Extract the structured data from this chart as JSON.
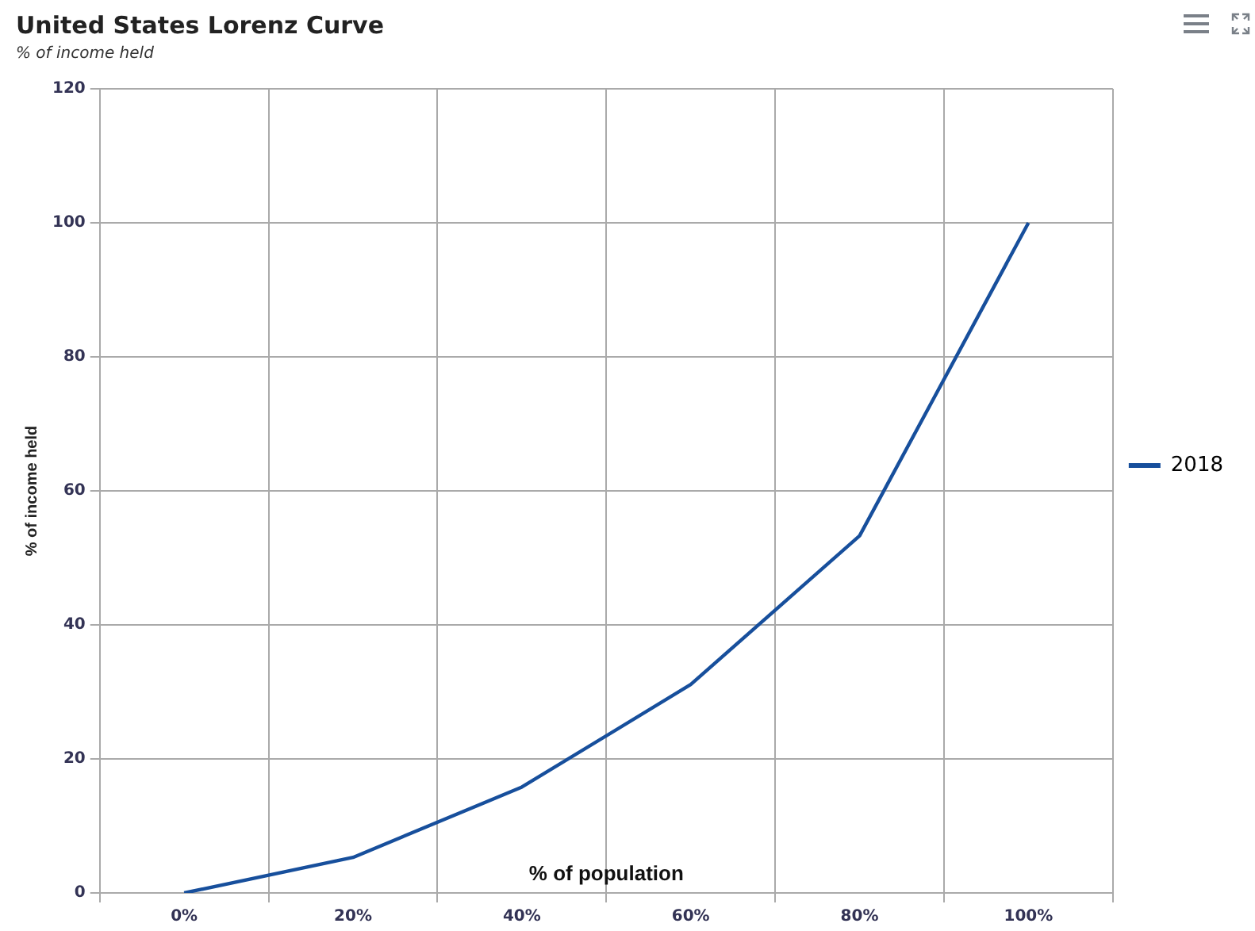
{
  "chart_data": {
    "type": "line",
    "title": "United States Lorenz Curve",
    "subtitle": "% of income held",
    "xlabel": "% of population",
    "ylabel": "% of income held",
    "categories": [
      "0%",
      "20%",
      "40%",
      "60%",
      "80%",
      "100%"
    ],
    "series": [
      {
        "name": "2018",
        "color": "#174f9c",
        "values": [
          0,
          5.3,
          15.8,
          31.1,
          53.3,
          100
        ]
      }
    ],
    "ylim": [
      0,
      120
    ],
    "yticks": [
      0,
      20,
      40,
      60,
      80,
      100,
      120
    ],
    "grid": true,
    "legend": "right",
    "marker": "none",
    "line_style": "solid"
  }
}
